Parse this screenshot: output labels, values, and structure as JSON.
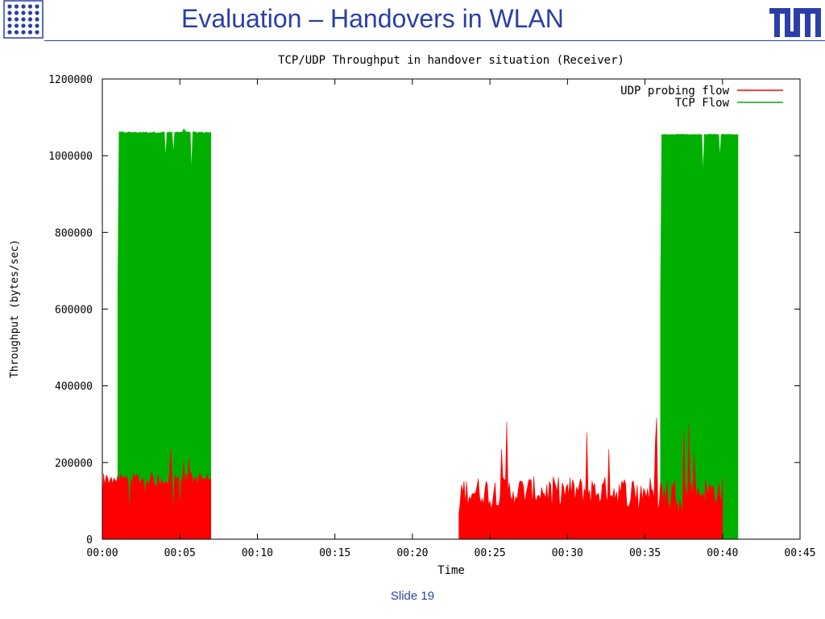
{
  "slide": {
    "title": "Evaluation – Handovers in WLAN",
    "footer": "Slide 19",
    "accent_color": "#2b3fa8",
    "logo_left_icon": "dot-grid-logo-icon",
    "logo_right_icon": "tum-logo-icon"
  },
  "chart_data": {
    "type": "line",
    "title": "TCP/UDP Throughput in handover situation (Receiver)",
    "xlabel": "Time",
    "ylabel": "Throughput (bytes/sec)",
    "xlim": [
      "00:00",
      "00:45"
    ],
    "ylim": [
      0,
      1200000
    ],
    "x_ticks": [
      "00:00",
      "00:05",
      "00:10",
      "00:15",
      "00:20",
      "00:25",
      "00:30",
      "00:35",
      "00:40",
      "00:45"
    ],
    "y_ticks": [
      0,
      200000,
      400000,
      600000,
      800000,
      1000000,
      1200000
    ],
    "grid": false,
    "legend_position": "top-right",
    "series": [
      {
        "name": "UDP probing flow",
        "color": "#ff0000",
        "segments": [
          {
            "start": "00:00",
            "end": "00:07",
            "typical": 150000,
            "min": 50000,
            "max": 250000
          },
          {
            "start": "00:23",
            "end": "00:40",
            "typical": 110000,
            "min": 60000,
            "max": 330000
          }
        ]
      },
      {
        "name": "TCP Flow",
        "color": "#00b000",
        "segments": [
          {
            "start": "00:01",
            "end": "00:07",
            "typical": 1060000,
            "min": 910000,
            "max": 1070000
          },
          {
            "start": "00:36",
            "end": "00:41",
            "typical": 1055000,
            "min": 880000,
            "max": 1060000
          }
        ]
      }
    ]
  }
}
